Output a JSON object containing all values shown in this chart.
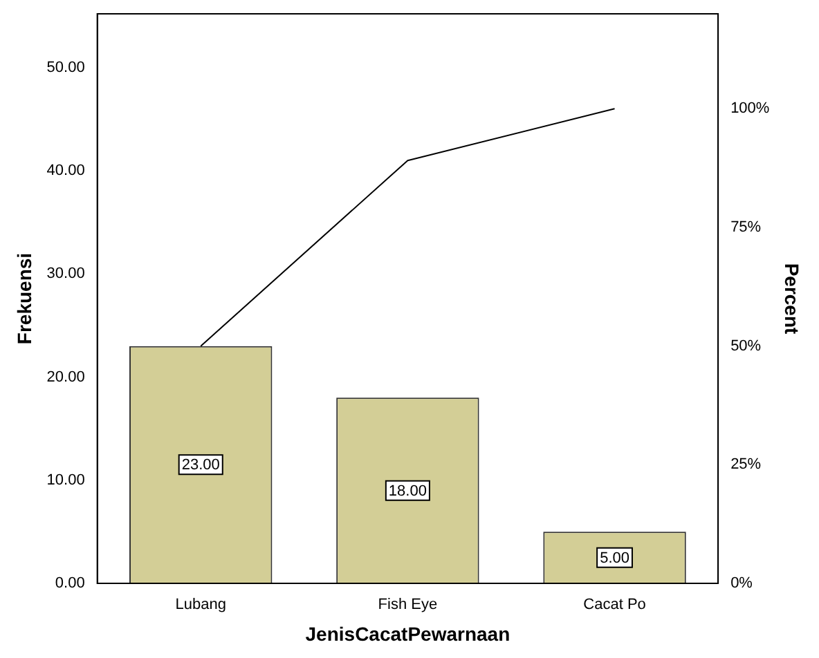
{
  "chart_data": {
    "type": "bar",
    "xlabel": "JenisCacatPewarnaan",
    "ylabel": "Frekuensi",
    "y2label": "Percent",
    "categories": [
      "Lubang",
      "Fish Eye",
      "Cacat Po"
    ],
    "series": [
      {
        "color": "#d3ce96",
        "values": [
          23,
          18,
          5
        ],
        "value_labels": [
          "23.00",
          "18.00",
          "5.00"
        ]
      },
      {
        "type": "line",
        "axis": "y2",
        "color": "#000000",
        "values": [
          50,
          89.1,
          100
        ]
      }
    ],
    "ylim": [
      0,
      55.2
    ],
    "yticks": [
      {
        "value": 0,
        "label": "0.00"
      },
      {
        "value": 10,
        "label": "10.00"
      },
      {
        "value": 20,
        "label": "20.00"
      },
      {
        "value": 30,
        "label": "30.00"
      },
      {
        "value": 40,
        "label": "40.00"
      },
      {
        "value": 50,
        "label": "50.00"
      }
    ],
    "y2lim": [
      0,
      120
    ],
    "y2ticks": [
      {
        "value": 0,
        "label": "0%"
      },
      {
        "value": 25,
        "label": "25%"
      },
      {
        "value": 50,
        "label": "50%"
      },
      {
        "value": 75,
        "label": "75%"
      },
      {
        "value": 100,
        "label": "100%"
      }
    ],
    "grid": false,
    "legend": false,
    "marker": "none",
    "line_style": "solid"
  }
}
